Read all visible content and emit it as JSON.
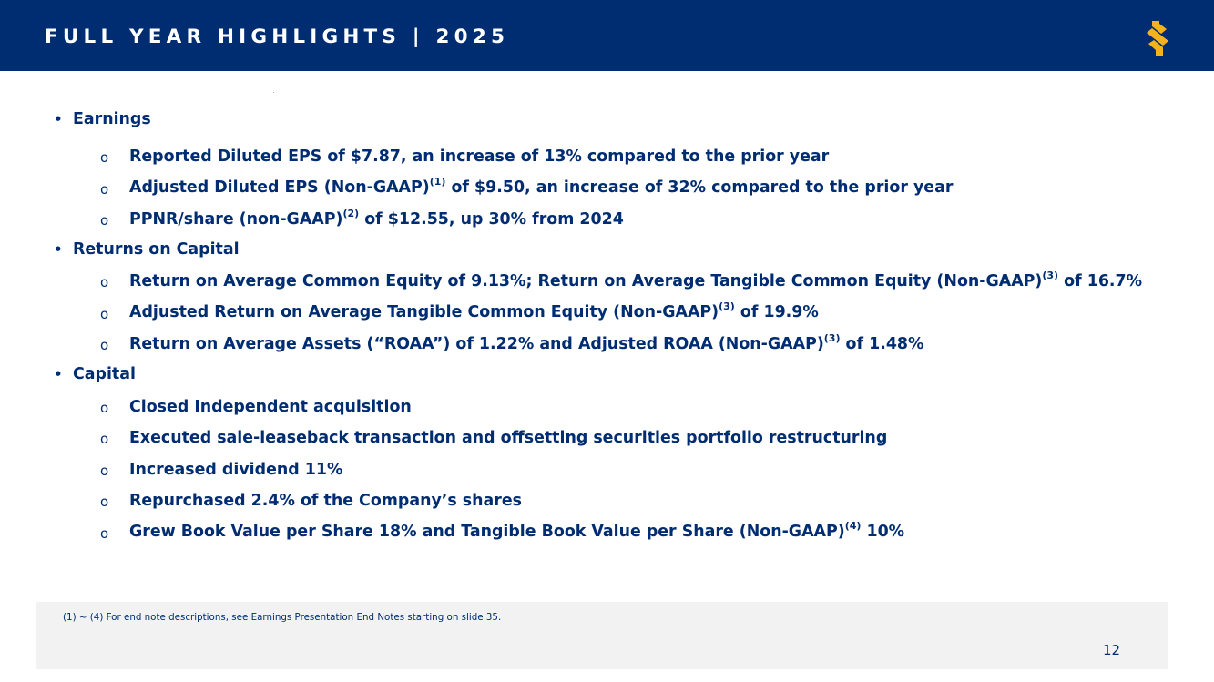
{
  "header": {
    "title": "FULL YEAR HIGHLIGHTS | 2025",
    "logo_icon": "brand-s-logo-icon",
    "logo_color": "#f5b21b",
    "background_color": "#002d72"
  },
  "sections": [
    {
      "heading": "Earnings",
      "items": [
        {
          "text": "Reported Diluted EPS of $7.87, an increase of 13% compared to the prior year"
        },
        {
          "pre": "Adjusted Diluted EPS (Non-GAAP)",
          "sup": "(1)",
          "post": " of $9.50, an increase of 32% compared to the prior year"
        },
        {
          "pre": "PPNR/share (non-GAAP)",
          "sup": "(2)",
          "post": " of $12.55, up 30% from 2024"
        }
      ]
    },
    {
      "heading": "Returns on Capital",
      "items": [
        {
          "pre": "Return on Average Common Equity of 9.13%; Return on Average Tangible Common Equity (Non-GAAP)",
          "sup": "(3)",
          "post": " of 16.7%"
        },
        {
          "pre": "Adjusted Return on Average Tangible Common Equity (Non-GAAP)",
          "sup": "(3)",
          "post": " of 19.9%"
        },
        {
          "pre": "Return on Average Assets (“ROAA”) of 1.22% and Adjusted ROAA (Non-GAAP)",
          "sup": "(3)",
          "post": " of 1.48%"
        }
      ]
    },
    {
      "heading": "Capital",
      "items": [
        {
          "text": "Closed Independent acquisition"
        },
        {
          "text": "Executed sale-leaseback transaction and offsetting securities portfolio restructuring"
        },
        {
          "text": "Increased dividend 11%"
        },
        {
          "text": "Repurchased 2.4% of the Company’s shares"
        },
        {
          "pre": "Grew Book Value per Share 18% and Tangible Book Value per Share (Non-GAAP)",
          "sup": "(4)",
          "post": " 10%"
        }
      ]
    }
  ],
  "bullets": {
    "level1": "•",
    "level2": "o"
  },
  "footnote": "(1) ~ (4)  For end note descriptions, see Earnings Presentation End Notes starting on slide 35.",
  "page_number": "12"
}
